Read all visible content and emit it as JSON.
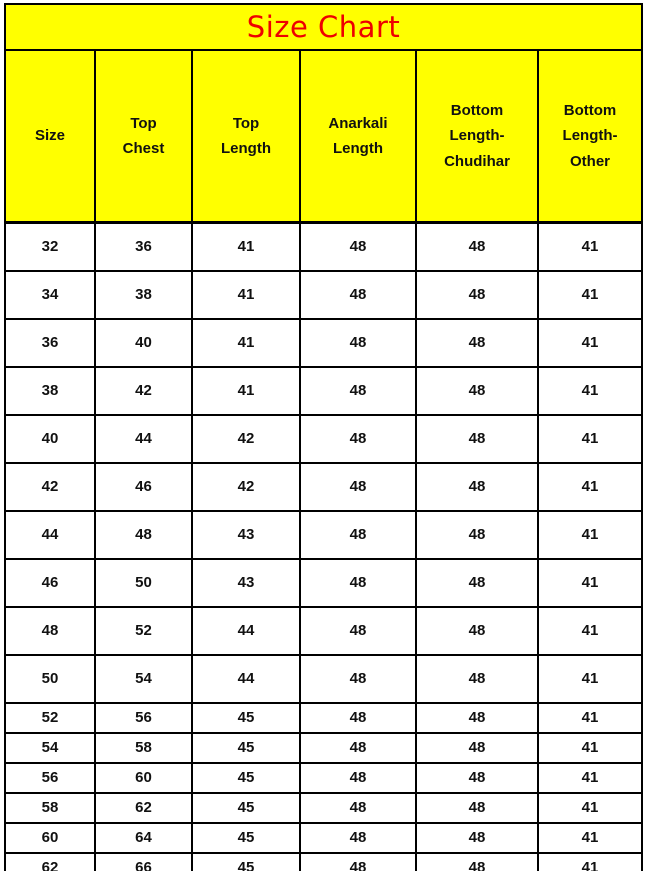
{
  "title": "Size Chart",
  "colors": {
    "table_bg": "#ffff00",
    "title_text": "#ee0000",
    "header_text": "#111111",
    "cell_text": "#111111",
    "border": "#000000",
    "page_bg": "#ffffff"
  },
  "layout_hint": {
    "tall_row_count": 10
  },
  "chart_data": {
    "type": "table",
    "title": "Size Chart",
    "columns": [
      "Size",
      "Top Chest",
      "Top Length",
      "Anarkali Length",
      "Bottom Length-Chudihar",
      "Bottom Length-Other"
    ],
    "rows": [
      [
        32,
        36,
        41,
        48,
        48,
        41
      ],
      [
        34,
        38,
        41,
        48,
        48,
        41
      ],
      [
        36,
        40,
        41,
        48,
        48,
        41
      ],
      [
        38,
        42,
        41,
        48,
        48,
        41
      ],
      [
        40,
        44,
        42,
        48,
        48,
        41
      ],
      [
        42,
        46,
        42,
        48,
        48,
        41
      ],
      [
        44,
        48,
        43,
        48,
        48,
        41
      ],
      [
        46,
        50,
        43,
        48,
        48,
        41
      ],
      [
        48,
        52,
        44,
        48,
        48,
        41
      ],
      [
        50,
        54,
        44,
        48,
        48,
        41
      ],
      [
        52,
        56,
        45,
        48,
        48,
        41
      ],
      [
        54,
        58,
        45,
        48,
        48,
        41
      ],
      [
        56,
        60,
        45,
        48,
        48,
        41
      ],
      [
        58,
        62,
        45,
        48,
        48,
        41
      ],
      [
        60,
        64,
        45,
        48,
        48,
        41
      ],
      [
        62,
        66,
        45,
        48,
        48,
        41
      ]
    ]
  }
}
